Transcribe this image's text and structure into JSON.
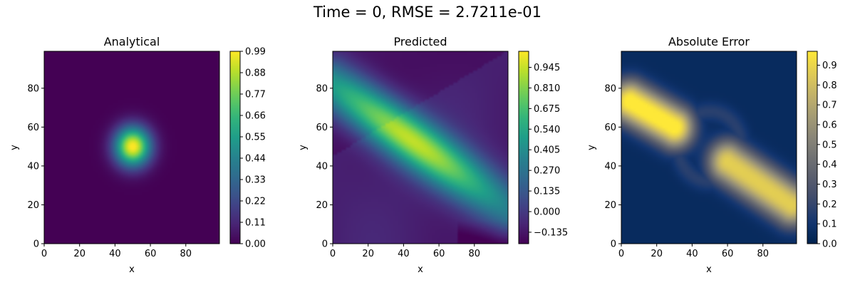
{
  "figure": {
    "suptitle": "Time = 0, RMSE = 2.7211e-01"
  },
  "chart_data": [
    {
      "type": "heatmap",
      "title": "Analytical",
      "xlabel": "x",
      "ylabel": "y",
      "xlim": [
        0,
        99
      ],
      "ylim": [
        0,
        99
      ],
      "xticks": [
        "0",
        "20",
        "40",
        "60",
        "80"
      ],
      "yticks": [
        "0",
        "20",
        "40",
        "60",
        "80"
      ],
      "colormap": "viridis",
      "field": {
        "kind": "gaussian",
        "center": [
          50,
          50
        ],
        "sigma": 7,
        "amplitude": 1.0
      },
      "colorbar": {
        "range": [
          0,
          0.99
        ],
        "ticks": [
          "0.00",
          "0.11",
          "0.22",
          "0.33",
          "0.44",
          "0.55",
          "0.66",
          "0.77",
          "0.88",
          "0.99"
        ]
      }
    },
    {
      "type": "heatmap",
      "title": "Predicted",
      "xlabel": "x",
      "ylabel": "y",
      "xlim": [
        0,
        99
      ],
      "ylim": [
        0,
        99
      ],
      "xticks": [
        "0",
        "20",
        "40",
        "60",
        "80"
      ],
      "yticks": [
        "0",
        "20",
        "40",
        "60",
        "80"
      ],
      "colormap": "viridis",
      "field": {
        "kind": "ridge",
        "start": [
          0,
          82
        ],
        "end": [
          99,
          18
        ],
        "width": 9
      },
      "colorbar": {
        "range": [
          -0.21,
          1.05
        ],
        "ticks": [
          "−0.135",
          "0.000",
          "0.135",
          "0.270",
          "0.405",
          "0.540",
          "0.675",
          "0.810",
          "0.945"
        ]
      }
    },
    {
      "type": "heatmap",
      "title": "Absolute Error",
      "xlabel": "x",
      "ylabel": "y",
      "xlim": [
        0,
        99
      ],
      "ylim": [
        0,
        99
      ],
      "xticks": [
        "0",
        "20",
        "40",
        "60",
        "80"
      ],
      "yticks": [
        "0",
        "20",
        "40",
        "60",
        "80"
      ],
      "colormap": "cividis",
      "field": {
        "kind": "two_lobes"
      },
      "colorbar": {
        "range": [
          0,
          0.97
        ],
        "ticks": [
          "0.0",
          "0.1",
          "0.2",
          "0.3",
          "0.4",
          "0.5",
          "0.6",
          "0.7",
          "0.8",
          "0.9"
        ]
      }
    }
  ]
}
